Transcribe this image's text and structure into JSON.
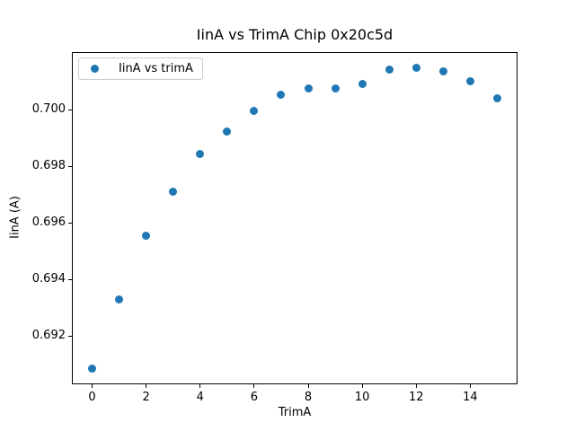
{
  "chart_data": {
    "type": "scatter",
    "title": "IinA vs TrimA Chip 0x20c5d",
    "xlabel": "TrimA",
    "ylabel": "IinA (A)",
    "legend": {
      "label": "IinA vs trimA",
      "position": "upper left"
    },
    "marker_color": "#1f77b4",
    "marker_size_px": 9,
    "grid": false,
    "x": [
      0,
      1,
      2,
      3,
      4,
      5,
      6,
      7,
      8,
      9,
      10,
      11,
      12,
      13,
      14,
      15
    ],
    "y": [
      0.69084,
      0.69331,
      0.69556,
      0.6971,
      0.69843,
      0.69924,
      0.69995,
      0.70053,
      0.70077,
      0.70077,
      0.7009,
      0.70141,
      0.7015,
      0.70137,
      0.70102,
      0.7004
    ],
    "xlim": [
      -0.75,
      15.75
    ],
    "ylim": [
      0.6903,
      0.70204
    ],
    "xticks": [
      0,
      2,
      4,
      6,
      8,
      10,
      12,
      14
    ],
    "xtick_labels": [
      "0",
      "2",
      "4",
      "6",
      "8",
      "10",
      "12",
      "14"
    ],
    "yticks": [
      0.692,
      0.694,
      0.696,
      0.698,
      0.7
    ],
    "ytick_labels": [
      "0.692",
      "0.694",
      "0.696",
      "0.698",
      "0.700"
    ]
  }
}
